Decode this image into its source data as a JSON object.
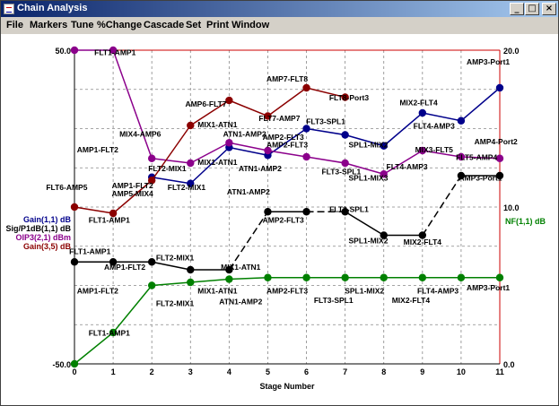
{
  "window": {
    "title": "Chain Analysis",
    "minimize_icon": "_",
    "maximize_icon": "□",
    "close_icon": "×"
  },
  "menu": [
    {
      "label": "File"
    },
    {
      "label": "Markers"
    },
    {
      "label": "Tune"
    },
    {
      "label": "%Change"
    },
    {
      "label": "Cascade"
    },
    {
      "label": "Set"
    },
    {
      "label": "Print Window"
    }
  ],
  "colors": {
    "gain": "#00008b",
    "nf": "#008000",
    "oip3": "#8b008b",
    "sig_p1db": "#000000",
    "gain35": "#8b0000",
    "left_axis": "#000000",
    "right_axis": "#cc0000"
  },
  "chart_data": {
    "type": "line",
    "xlabel": "Stage Number",
    "x_ticks": [
      "0",
      "1",
      "2",
      "3",
      "4",
      "5",
      "6",
      "7",
      "8",
      "9",
      "10",
      "11"
    ],
    "y_left": {
      "ticks": [
        "50.0",
        "-50.0"
      ],
      "range": [
        -50,
        50
      ]
    },
    "y_right": {
      "ticks": [
        "20.0",
        "10.0",
        "0.0"
      ],
      "range": [
        0,
        20
      ]
    },
    "legend_left": [
      "Gain(1,1) dB",
      "Sig/P1dB(1,1) dB",
      "OIP3(2,1) dBm",
      "Gain(3,5) dB"
    ],
    "legend_right": [
      "NF(1,1) dB"
    ],
    "series": [
      {
        "name": "Gain(1,1) dB",
        "color": "#00008b",
        "axis": "left",
        "x": [
          2,
          3,
          4,
          5,
          6,
          7,
          8,
          9,
          10,
          11
        ],
        "y": [
          9.5,
          7.5,
          19,
          16.5,
          25,
          23,
          19.5,
          30,
          27.5,
          38
        ]
      },
      {
        "name": "OIP3(2,1) dBm",
        "color": "#8b008b",
        "axis": "left",
        "x": [
          0,
          1,
          2,
          3,
          4,
          5,
          6,
          7,
          8,
          9,
          10,
          11
        ],
        "y": [
          50,
          50,
          15.5,
          14,
          20.5,
          18,
          16,
          14,
          10.5,
          18,
          16,
          15.5
        ]
      },
      {
        "name": "Gain(3,5) dB",
        "color": "#8b0000",
        "axis": "left",
        "x": [
          0,
          1,
          2,
          3,
          4,
          5,
          6,
          7
        ],
        "y": [
          0,
          -2,
          8.5,
          26,
          34,
          29,
          38,
          35
        ]
      },
      {
        "name": "Sig/P1dB(1,1) dB",
        "color": "#000000",
        "axis": "left",
        "x": [
          0,
          1,
          2,
          3,
          4,
          5,
          6,
          7,
          8,
          9,
          10,
          11
        ],
        "y": [
          -17.5,
          -17.5,
          -17.5,
          -20,
          -20,
          -1.5,
          -1.5,
          -1.5,
          -9,
          -9,
          10,
          10
        ],
        "dashed": [
          false,
          false,
          false,
          false,
          true,
          false,
          true,
          false,
          false,
          true,
          false
        ]
      },
      {
        "name": "NF(1,1) dB",
        "color": "#008000",
        "axis": "right",
        "x": [
          0,
          1,
          2,
          3,
          4,
          5,
          6,
          7,
          8,
          9,
          10,
          11
        ],
        "y": [
          0,
          2,
          5,
          5.2,
          5.4,
          5.5,
          5.5,
          5.5,
          5.5,
          5.5,
          5.5,
          5.5
        ]
      }
    ],
    "annotations": [
      {
        "text": "FLT1-AMP1",
        "x": 1.05,
        "y": 48.5,
        "color": "#000000"
      },
      {
        "text": "AMP7-FLT8",
        "x": 5.5,
        "y": 40,
        "color": "#000000"
      },
      {
        "text": "FLT8-Port3",
        "x": 7.1,
        "y": 34,
        "color": "#000000"
      },
      {
        "text": "AMP3-Port1",
        "x": 10.7,
        "y": 45.5,
        "color": "#000000"
      },
      {
        "text": "AMP6-FLT7",
        "x": 3.4,
        "y": 32,
        "color": "#000000"
      },
      {
        "text": "MIX2-FLT4",
        "x": 8.9,
        "y": 32.5,
        "color": "#000000"
      },
      {
        "text": "FLT7-AMP7",
        "x": 5.3,
        "y": 27.5,
        "color": "#000000"
      },
      {
        "text": "MIX1-ATN1",
        "x": 3.7,
        "y": 25.5,
        "color": "#000000"
      },
      {
        "text": "FLT3-SPL1",
        "x": 6.5,
        "y": 26.5,
        "color": "#000000"
      },
      {
        "text": "FLT4-AMP3",
        "x": 9.3,
        "y": 25,
        "color": "#000000"
      },
      {
        "text": "MIX4-AMP6",
        "x": 1.7,
        "y": 22.5,
        "color": "#000000"
      },
      {
        "text": "ATN1-AMP2",
        "x": 4.4,
        "y": 22.5,
        "color": "#000000"
      },
      {
        "text": "AMP2-FLT3",
        "x": 5.4,
        "y": 21.5,
        "color": "#000000"
      },
      {
        "text": "SPL1-MIX2",
        "x": 7.6,
        "y": 19,
        "color": "#000000"
      },
      {
        "text": "AMP4-Port2",
        "x": 10.9,
        "y": 20,
        "color": "#000000"
      },
      {
        "text": "AMP1-FLT2",
        "x": 0.6,
        "y": 17.5,
        "color": "#000000"
      },
      {
        "text": "AMP2-FLT3",
        "x": 5.5,
        "y": 19,
        "color": "#000000"
      },
      {
        "text": "MIX3-FLT5",
        "x": 9.3,
        "y": 17.5,
        "color": "#000000"
      },
      {
        "text": "FLT5-AMP4",
        "x": 10.4,
        "y": 15,
        "color": "#000000"
      },
      {
        "text": "MIX1-ATN1",
        "x": 3.7,
        "y": 13.5,
        "color": "#000000"
      },
      {
        "text": "FLT2-MIX1",
        "x": 2.4,
        "y": 11.5,
        "color": "#000000"
      },
      {
        "text": "ATN1-AMP2",
        "x": 4.8,
        "y": 11.5,
        "color": "#000000"
      },
      {
        "text": "FLT3-SPL1",
        "x": 6.9,
        "y": 10.5,
        "color": "#000000"
      },
      {
        "text": "FLT4-AMP3",
        "x": 8.6,
        "y": 12,
        "color": "#000000"
      },
      {
        "text": "SPL1-MIX3",
        "x": 7.6,
        "y": 8.5,
        "color": "#000000"
      },
      {
        "text": "AMP3-Port1",
        "x": 10.5,
        "y": 8.5,
        "color": "#000000"
      },
      {
        "text": "FLT6-AMP5",
        "x": -0.2,
        "y": 5.5,
        "color": "#000000"
      },
      {
        "text": "AMP1-FLT2",
        "x": 1.5,
        "y": 6,
        "color": "#000000"
      },
      {
        "text": "AMP5-MIX4",
        "x": 1.5,
        "y": 3.5,
        "color": "#000000"
      },
      {
        "text": "FLT2-MIX1",
        "x": 2.9,
        "y": 5.5,
        "color": "#000000"
      },
      {
        "text": "FLT1-AMP1",
        "x": 0.9,
        "y": -5,
        "color": "#000000"
      },
      {
        "text": "ATN1-AMP2",
        "x": 4.5,
        "y": 4,
        "color": "#000000"
      },
      {
        "text": "AMP2-FLT3",
        "x": 5.4,
        "y": -5,
        "color": "#000000"
      },
      {
        "text": "FLT3-SPL1",
        "x": 7.1,
        "y": -1.5,
        "color": "#000000"
      },
      {
        "text": "SPL1-MIX2",
        "x": 7.6,
        "y": -11.5,
        "color": "#000000"
      },
      {
        "text": "MIX2-FLT4",
        "x": 9,
        "y": -12,
        "color": "#000000"
      },
      {
        "text": "FLT1-AMP1",
        "x": 0.4,
        "y": -15,
        "color": "#000000"
      },
      {
        "text": "AMP1-FLT2",
        "x": 1.3,
        "y": -20,
        "color": "#000000"
      },
      {
        "text": "FLT2-MIX1",
        "x": 2.6,
        "y": -17,
        "color": "#000000"
      },
      {
        "text": "MIX1-ATN1",
        "x": 4.3,
        "y": -20,
        "color": "#000000"
      },
      {
        "text": "AMP1-FLT2",
        "x": 0.6,
        "y": -27.5,
        "color": "#000000"
      },
      {
        "text": "MIX1-ATN1",
        "x": 3.7,
        "y": -27.5,
        "color": "#000000"
      },
      {
        "text": "AMP2-FLT3",
        "x": 5.5,
        "y": -27.5,
        "color": "#000000"
      },
      {
        "text": "SPL1-MIX2",
        "x": 7.5,
        "y": -27.5,
        "color": "#000000"
      },
      {
        "text": "FLT4-AMP3",
        "x": 9.4,
        "y": -27.5,
        "color": "#000000"
      },
      {
        "text": "AMP3-Port1",
        "x": 10.7,
        "y": -26.5,
        "color": "#000000"
      },
      {
        "text": "FLT2-MIX1",
        "x": 2.6,
        "y": -31.5,
        "color": "#000000"
      },
      {
        "text": "ATN1-AMP2",
        "x": 4.3,
        "y": -31,
        "color": "#000000"
      },
      {
        "text": "FLT3-SPL1",
        "x": 6.7,
        "y": -30.5,
        "color": "#000000"
      },
      {
        "text": "MIX2-FLT4",
        "x": 8.7,
        "y": -30.5,
        "color": "#000000"
      },
      {
        "text": "FLT1-AMP1",
        "x": 0.9,
        "y": -41,
        "color": "#000000"
      }
    ]
  }
}
